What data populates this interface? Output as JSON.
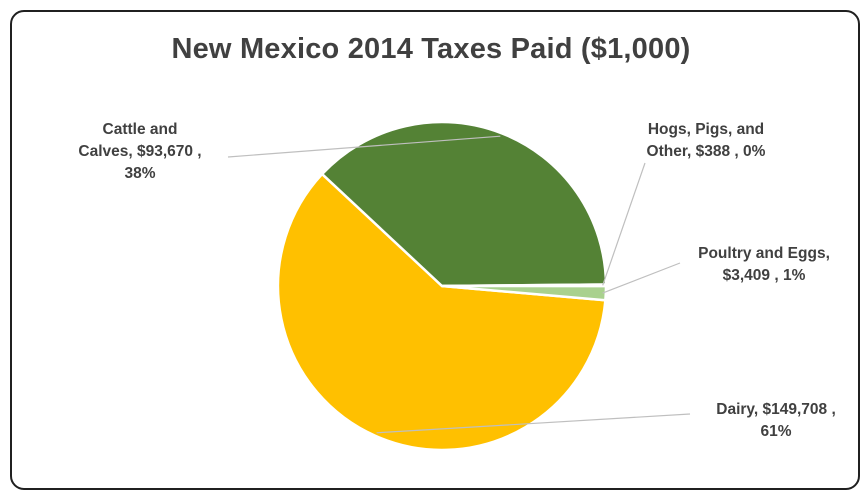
{
  "chart_data": {
    "type": "pie",
    "title": "New Mexico 2014 Taxes Paid ($1,000)",
    "slices": [
      {
        "name": "Dairy",
        "value": 149708,
        "value_label": "$149,708",
        "percent_label": "61%",
        "color": "#FFC000"
      },
      {
        "name": "Cattle and Calves",
        "value": 93670,
        "value_label": "$93,670",
        "percent_label": "38%",
        "color": "#548235"
      },
      {
        "name": "Hogs, Pigs, and Other",
        "value": 388,
        "value_label": "$388",
        "percent_label": "0%",
        "color": "#8FB666"
      },
      {
        "name": "Poultry and Eggs",
        "value": 3409,
        "value_label": "$3,409",
        "percent_label": "1%",
        "color": "#A9D18E"
      }
    ],
    "labels": [
      {
        "lines": [
          "Cattle and",
          "Calves,  $93,670 ,",
          "38%"
        ]
      },
      {
        "lines": [
          "Hogs, Pigs, and",
          "Other,  $388 , 0%"
        ]
      },
      {
        "lines": [
          "Poultry and Eggs,",
          "$3,409 , 1%"
        ]
      },
      {
        "lines": [
          "Dairy,  $149,708 ,",
          "61%"
        ]
      }
    ],
    "legend": "none",
    "grid": false
  }
}
